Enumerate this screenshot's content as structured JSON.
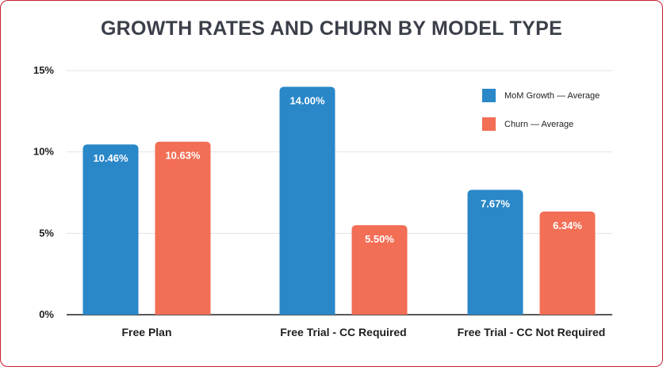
{
  "chart_data": {
    "type": "bar",
    "title": "GROWTH RATES AND CHURN BY MODEL TYPE",
    "categories": [
      "Free Plan",
      "Free Trial - CC Required",
      "Free Trial - CC Not Required"
    ],
    "series": [
      {
        "name": "MoM Growth — Average",
        "color": "#2a87c8",
        "values": [
          10.46,
          14.0,
          7.67
        ],
        "labels": [
          "10.46%",
          "14.00%",
          "7.67%"
        ]
      },
      {
        "name": "Churn — Average",
        "color": "#f26e55",
        "values": [
          10.63,
          5.5,
          6.34
        ],
        "labels": [
          "10.63%",
          "5.50%",
          "6.34%"
        ]
      }
    ],
    "yticks": [
      {
        "value": 0,
        "label": "0%"
      },
      {
        "value": 5,
        "label": "5%"
      },
      {
        "value": 10,
        "label": "10%"
      },
      {
        "value": 15,
        "label": "15%"
      }
    ],
    "ylim": [
      0,
      15
    ],
    "grid": true,
    "legend_position": "top-right"
  }
}
